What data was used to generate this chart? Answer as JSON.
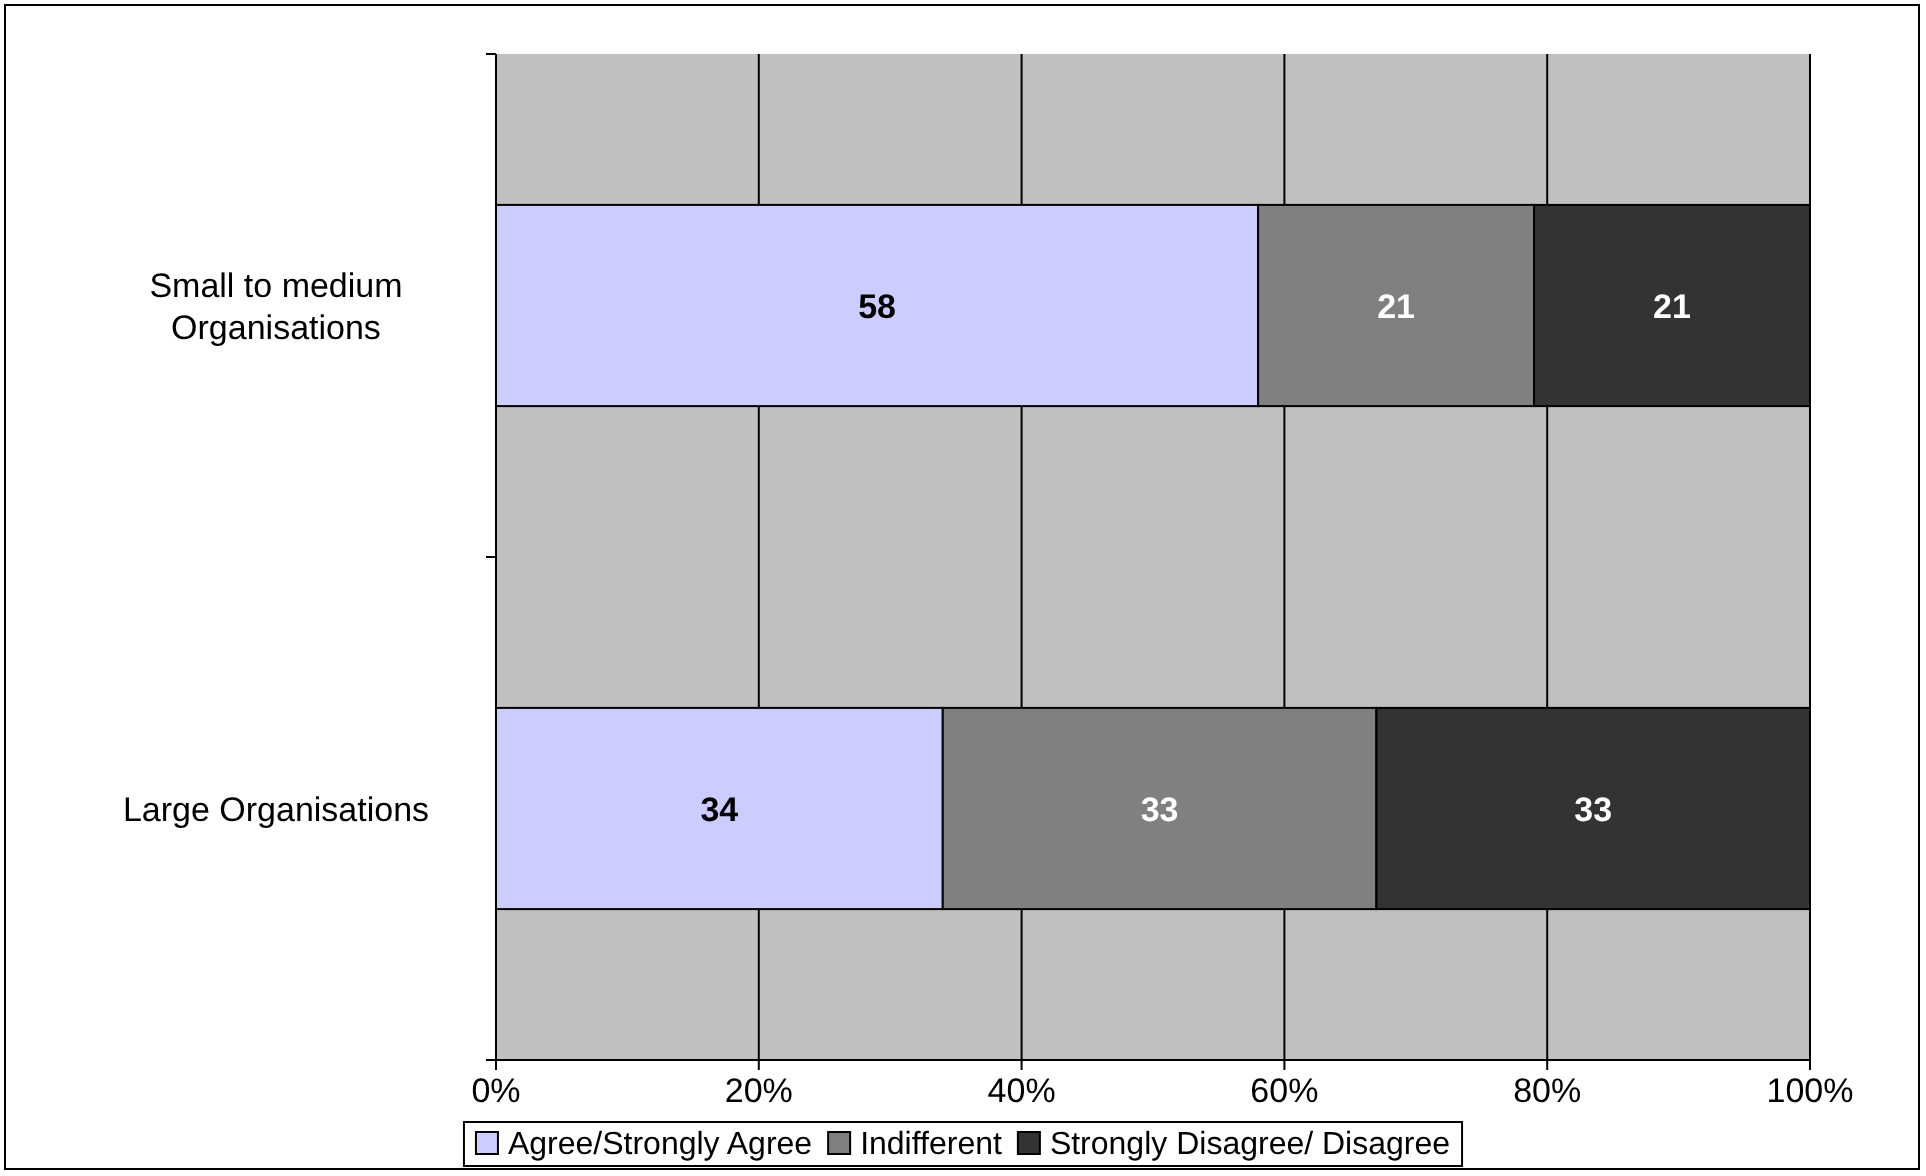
{
  "chart_data": {
    "type": "bar",
    "orientation": "horizontal",
    "stacked": true,
    "categories": [
      "Small to medium Organisations",
      "Large Organisations"
    ],
    "series": [
      {
        "name": "Agree/Strongly Agree",
        "color": "#ccccff",
        "values": [
          58,
          34
        ]
      },
      {
        "name": "Indifferent",
        "color": "#808080",
        "values": [
          21,
          33
        ]
      },
      {
        "name": "Strongly Disagree/ Disagree",
        "color": "#333333",
        "values": [
          21,
          33
        ]
      }
    ],
    "xlim": [
      0,
      100
    ],
    "xticks": [
      {
        "value": 0,
        "label": "0%"
      },
      {
        "value": 20,
        "label": "20%"
      },
      {
        "value": 40,
        "label": "40%"
      },
      {
        "value": 60,
        "label": "60%"
      },
      {
        "value": 80,
        "label": "80%"
      },
      {
        "value": 100,
        "label": "100%"
      }
    ],
    "grid": "x",
    "legend": "bottom",
    "data_labels": true
  }
}
